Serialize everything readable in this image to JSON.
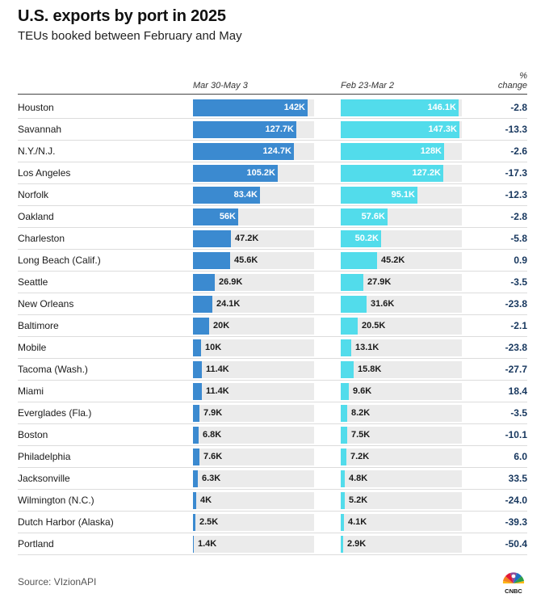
{
  "title": "U.S. exports by port in 2025",
  "subtitle": "TEUs booked between February and May",
  "source": "Source: VIzionAPI",
  "logo_text": "CNBC",
  "colors": {
    "series_a": "#3b8ad0",
    "series_b": "#52dceb",
    "track": "#ebebeb",
    "pct_text": "#17375e"
  },
  "headers": {
    "period_a": "Mar 30-May 3",
    "period_b": "Feb 23-Mar 2",
    "pct_line1": "%",
    "pct_line2": "change"
  },
  "chart_data": {
    "type": "bar",
    "title": "U.S. exports by port in 2025",
    "subtitle": "TEUs booked between February and May",
    "scale_max": 150000,
    "series": [
      {
        "name": "Mar 30-May 3",
        "labels": [
          "142K",
          "127.7K",
          "124.7K",
          "105.2K",
          "83.4K",
          "56K",
          "47.2K",
          "45.6K",
          "26.9K",
          "24.1K",
          "20K",
          "10K",
          "11.4K",
          "11.4K",
          "7.9K",
          "6.8K",
          "7.6K",
          "6.3K",
          "4K",
          "2.5K",
          "1.4K"
        ]
      },
      {
        "name": "Feb 23-Mar 2",
        "labels": [
          "146.1K",
          "147.3K",
          "128K",
          "127.2K",
          "95.1K",
          "57.6K",
          "50.2K",
          "45.2K",
          "27.9K",
          "31.6K",
          "20.5K",
          "13.1K",
          "15.8K",
          "9.6K",
          "8.2K",
          "7.5K",
          "7.2K",
          "4.8K",
          "5.2K",
          "4.1K",
          "2.9K"
        ]
      }
    ],
    "rows": [
      {
        "port": "Houston",
        "a": 142000,
        "b": 146100,
        "pct": "-2.8"
      },
      {
        "port": "Savannah",
        "a": 127700,
        "b": 147300,
        "pct": "-13.3"
      },
      {
        "port": "N.Y./N.J.",
        "a": 124700,
        "b": 128000,
        "pct": "-2.6"
      },
      {
        "port": "Los Angeles",
        "a": 105200,
        "b": 127200,
        "pct": "-17.3"
      },
      {
        "port": "Norfolk",
        "a": 83400,
        "b": 95100,
        "pct": "-12.3"
      },
      {
        "port": "Oakland",
        "a": 56000,
        "b": 57600,
        "pct": "-2.8"
      },
      {
        "port": "Charleston",
        "a": 47200,
        "b": 50200,
        "pct": "-5.8"
      },
      {
        "port": "Long Beach (Calif.)",
        "a": 45600,
        "b": 45200,
        "pct": "0.9"
      },
      {
        "port": "Seattle",
        "a": 26900,
        "b": 27900,
        "pct": "-3.5"
      },
      {
        "port": "New Orleans",
        "a": 24100,
        "b": 31600,
        "pct": "-23.8"
      },
      {
        "port": "Baltimore",
        "a": 20000,
        "b": 20500,
        "pct": "-2.1"
      },
      {
        "port": "Mobile",
        "a": 10000,
        "b": 13100,
        "pct": "-23.8"
      },
      {
        "port": "Tacoma (Wash.)",
        "a": 11400,
        "b": 15800,
        "pct": "-27.7"
      },
      {
        "port": "Miami",
        "a": 11400,
        "b": 9600,
        "pct": "18.4"
      },
      {
        "port": "Everglades (Fla.)",
        "a": 7900,
        "b": 8200,
        "pct": "-3.5"
      },
      {
        "port": "Boston",
        "a": 6800,
        "b": 7500,
        "pct": "-10.1"
      },
      {
        "port": "Philadelphia",
        "a": 7600,
        "b": 7200,
        "pct": "6.0"
      },
      {
        "port": "Jacksonville",
        "a": 6300,
        "b": 4800,
        "pct": "33.5"
      },
      {
        "port": "Wilmington (N.C.)",
        "a": 4000,
        "b": 5200,
        "pct": "-24.0"
      },
      {
        "port": "Dutch Harbor (Alaska)",
        "a": 2500,
        "b": 4100,
        "pct": "-39.3"
      },
      {
        "port": "Portland",
        "a": 1400,
        "b": 2900,
        "pct": "-50.4"
      }
    ]
  }
}
